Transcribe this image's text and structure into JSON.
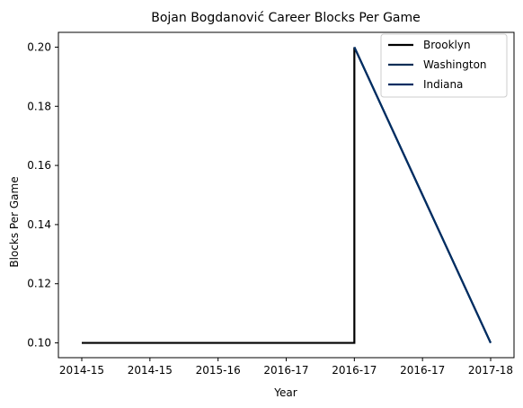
{
  "chart_data": {
    "type": "line",
    "title": "Bojan Bogdanović Career Blocks Per Game",
    "xlabel": "Year",
    "ylabel": "Blocks Per Game",
    "categories": [
      "2014-15",
      "2014-15",
      "2015-16",
      "2016-17",
      "2016-17",
      "2016-17",
      "2017-18"
    ],
    "ylim": [
      0.095,
      0.205
    ],
    "yticks": [
      0.1,
      0.12,
      0.14,
      0.16,
      0.18,
      0.2
    ],
    "ytick_labels": [
      "0.10",
      "0.12",
      "0.14",
      "0.16",
      "0.18",
      "0.20"
    ],
    "grid": false,
    "legend_position": "top-right",
    "series": [
      {
        "name": "Brooklyn",
        "color": "#000000",
        "points": [
          [
            0,
            0.1
          ],
          [
            1,
            0.1
          ],
          [
            2,
            0.1
          ],
          [
            3,
            0.1
          ],
          [
            4,
            0.1
          ],
          [
            4,
            0.2
          ]
        ]
      },
      {
        "name": "Washington",
        "color": "#0c2f56",
        "points": [
          [
            4,
            0.2
          ],
          [
            5,
            0.15
          ],
          [
            6,
            0.1
          ]
        ]
      },
      {
        "name": "Indiana",
        "color": "#002d62",
        "points": [
          [
            4,
            0.2
          ],
          [
            5,
            0.15
          ],
          [
            6,
            0.1
          ]
        ]
      }
    ]
  }
}
